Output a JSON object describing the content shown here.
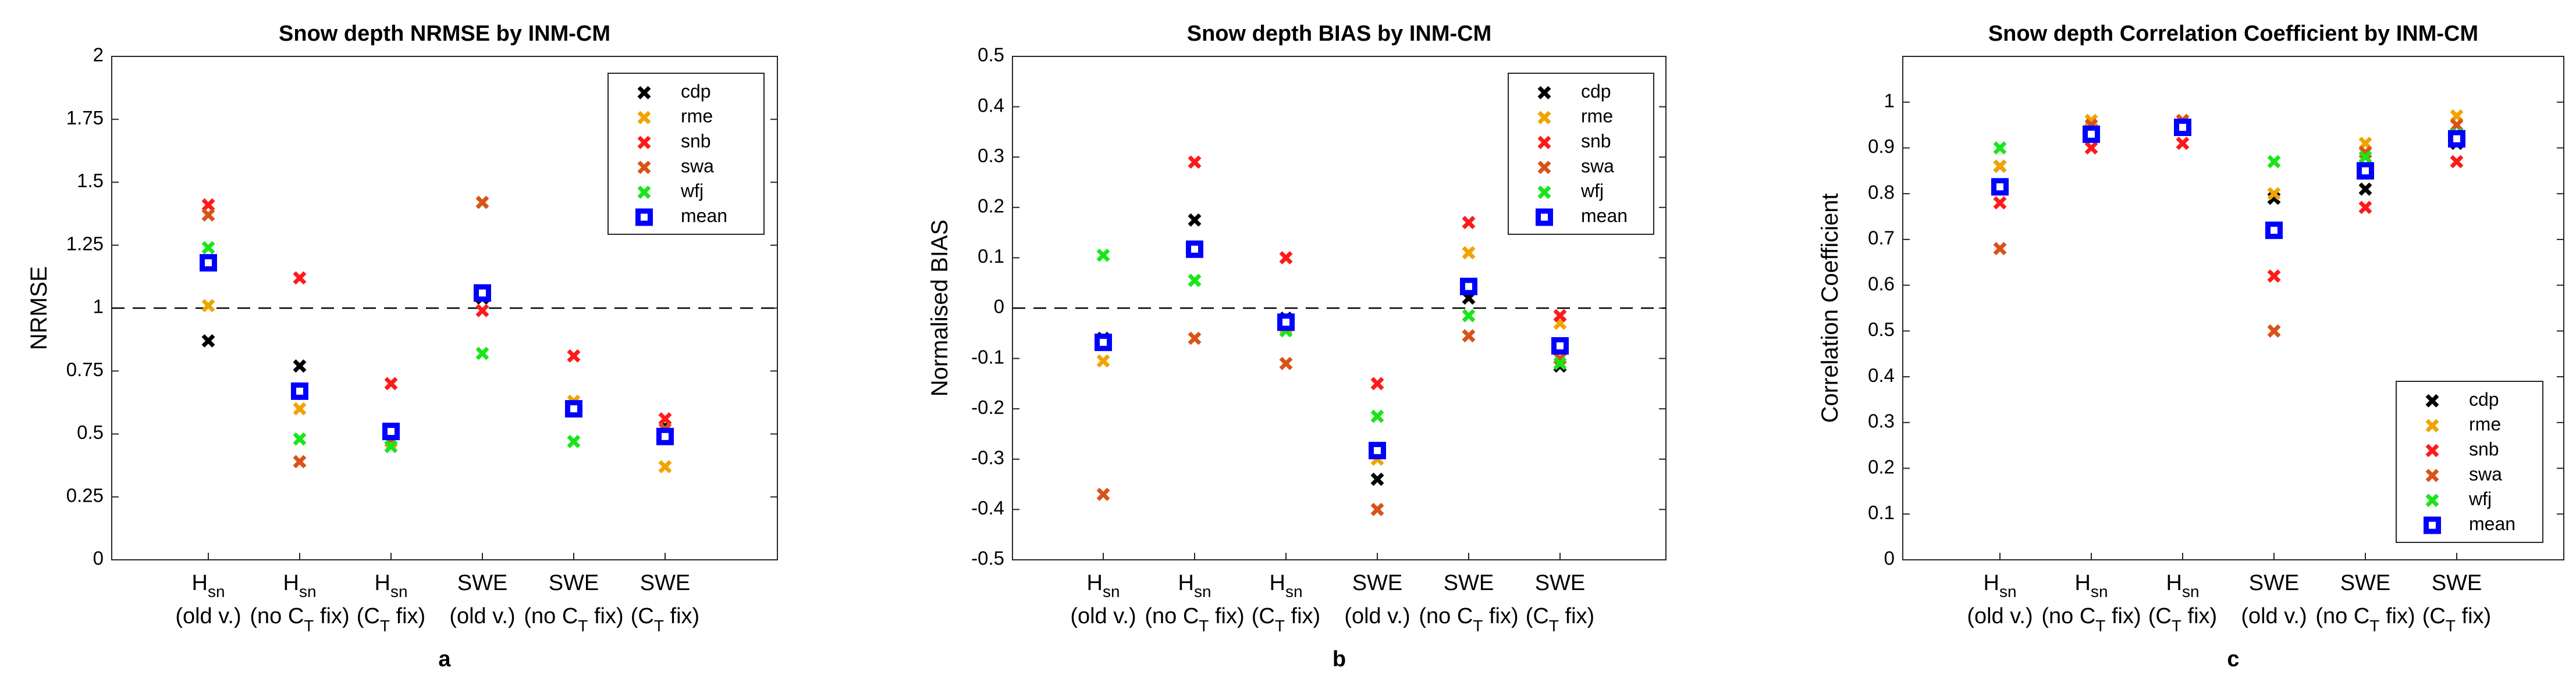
{
  "chart_data": [
    {
      "type": "scatter",
      "panel_label": "a",
      "title": "Snow depth NRMSE by INM-CM",
      "ylabel": "NRMSE",
      "ylim": [
        0,
        2
      ],
      "yticks": [
        "0",
        "0.25",
        "0.5",
        "0.75",
        "1",
        "1.25",
        "1.5",
        "1.75",
        "2"
      ],
      "ytick_values": [
        0,
        0.25,
        0.5,
        0.75,
        1,
        1.25,
        1.5,
        1.75,
        2
      ],
      "reference_line": 1,
      "legend_position": "top-right",
      "categories": [
        {
          "main": "H",
          "sub": "sn",
          "paren": "(old v.)"
        },
        {
          "main": "H",
          "sub": "sn",
          "paren": "(no C",
          "paren_sub": "T",
          "paren_end": " fix)"
        },
        {
          "main": "H",
          "sub": "sn",
          "paren": "(C",
          "paren_sub": "T",
          "paren_end": " fix)"
        },
        {
          "main": "SWE",
          "sub": "",
          "paren": "(old v.)"
        },
        {
          "main": "SWE",
          "sub": "",
          "paren": "(no C",
          "paren_sub": "T",
          "paren_end": " fix)"
        },
        {
          "main": "SWE",
          "sub": "",
          "paren": "(C",
          "paren_sub": "T",
          "paren_end": " fix)"
        }
      ],
      "series": [
        {
          "name": "cdp",
          "color": "#000000",
          "values": [
            0.87,
            0.77,
            0.47,
            1.04,
            0.6,
            0.53
          ]
        },
        {
          "name": "rme",
          "color": "#f0a400",
          "values": [
            1.01,
            0.6,
            0.47,
            1.05,
            0.63,
            0.37
          ]
        },
        {
          "name": "snb",
          "color": "#ff1a1a",
          "values": [
            1.41,
            1.12,
            0.7,
            0.99,
            0.81,
            0.56
          ]
        },
        {
          "name": "swa",
          "color": "#d95319",
          "values": [
            1.37,
            0.39,
            0.48,
            1.42,
            0.61,
            0.52
          ]
        },
        {
          "name": "wfj",
          "color": "#19e619",
          "values": [
            1.24,
            0.48,
            0.45,
            0.82,
            0.47,
            0.49
          ]
        },
        {
          "name": "mean",
          "color": "#0000ff",
          "values": [
            1.18,
            0.67,
            0.51,
            1.06,
            0.6,
            0.49
          ]
        }
      ]
    },
    {
      "type": "scatter",
      "panel_label": "b",
      "title": "Snow depth BIAS by INM-CM",
      "ylabel": "Normalised BIAS",
      "ylim": [
        -0.5,
        0.5
      ],
      "yticks": [
        "-0.5",
        "-0.4",
        "-0.3",
        "-0.2",
        "-0.1",
        "0",
        "0.1",
        "0.2",
        "0.3",
        "0.4",
        "0.5"
      ],
      "ytick_values": [
        -0.5,
        -0.4,
        -0.3,
        -0.2,
        -0.1,
        0,
        0.1,
        0.2,
        0.3,
        0.4,
        0.5
      ],
      "reference_line": 0,
      "legend_position": "top-right",
      "categories": [
        {
          "main": "H",
          "sub": "sn",
          "paren": "(old v.)"
        },
        {
          "main": "H",
          "sub": "sn",
          "paren": "(no C",
          "paren_sub": "T",
          "paren_end": " fix)"
        },
        {
          "main": "H",
          "sub": "sn",
          "paren": "(C",
          "paren_sub": "T",
          "paren_end": " fix)"
        },
        {
          "main": "SWE",
          "sub": "",
          "paren": "(old v.)"
        },
        {
          "main": "SWE",
          "sub": "",
          "paren": "(no C",
          "paren_sub": "T",
          "paren_end": " fix)"
        },
        {
          "main": "SWE",
          "sub": "",
          "paren": "(C",
          "paren_sub": "T",
          "paren_end": " fix)"
        }
      ],
      "series": [
        {
          "name": "cdp",
          "color": "#000000",
          "values": [
            -0.06,
            0.175,
            -0.02,
            -0.34,
            0.02,
            -0.115
          ]
        },
        {
          "name": "rme",
          "color": "#f0a400",
          "values": [
            -0.105,
            0.12,
            -0.04,
            -0.3,
            0.11,
            -0.03
          ]
        },
        {
          "name": "snb",
          "color": "#ff1a1a",
          "values": [
            -0.07,
            0.29,
            0.1,
            -0.15,
            0.17,
            -0.015
          ]
        },
        {
          "name": "swa",
          "color": "#d95319",
          "values": [
            -0.37,
            -0.06,
            -0.11,
            -0.4,
            -0.055,
            -0.1
          ]
        },
        {
          "name": "wfj",
          "color": "#19e619",
          "values": [
            0.105,
            0.055,
            -0.045,
            -0.215,
            -0.015,
            -0.11
          ]
        },
        {
          "name": "mean",
          "color": "#0000ff",
          "values": [
            -0.068,
            0.117,
            -0.028,
            -0.283,
            0.043,
            -0.075
          ]
        }
      ]
    },
    {
      "type": "scatter",
      "panel_label": "c",
      "title": "Snow depth Correlation Coefficient by INM-CM",
      "ylabel": "Correlation Coefficient",
      "ylim": [
        0,
        1.1
      ],
      "yticks": [
        "0",
        "0.1",
        "0.2",
        "0.3",
        "0.4",
        "0.5",
        "0.6",
        "0.7",
        "0.8",
        "0.9",
        "1"
      ],
      "ytick_values": [
        0,
        0.1,
        0.2,
        0.3,
        0.4,
        0.5,
        0.6,
        0.7,
        0.8,
        0.9,
        1
      ],
      "reference_line": null,
      "legend_position": "bottom-right",
      "categories": [
        {
          "main": "H",
          "sub": "sn",
          "paren": "(old v.)"
        },
        {
          "main": "H",
          "sub": "sn",
          "paren": "(no C",
          "paren_sub": "T",
          "paren_end": " fix)"
        },
        {
          "main": "H",
          "sub": "sn",
          "paren": "(C",
          "paren_sub": "T",
          "paren_end": " fix)"
        },
        {
          "main": "SWE",
          "sub": "",
          "paren": "(old v.)"
        },
        {
          "main": "SWE",
          "sub": "",
          "paren": "(no C",
          "paren_sub": "T",
          "paren_end": " fix)"
        },
        {
          "main": "SWE",
          "sub": "",
          "paren": "(C",
          "paren_sub": "T",
          "paren_end": " fix)"
        }
      ],
      "series": [
        {
          "name": "cdp",
          "color": "#000000",
          "values": [
            0.86,
            0.94,
            0.95,
            0.79,
            0.81,
            0.91
          ]
        },
        {
          "name": "rme",
          "color": "#f0a400",
          "values": [
            0.86,
            0.96,
            0.96,
            0.8,
            0.91,
            0.97
          ]
        },
        {
          "name": "snb",
          "color": "#ff1a1a",
          "values": [
            0.78,
            0.9,
            0.91,
            0.62,
            0.77,
            0.87
          ]
        },
        {
          "name": "swa",
          "color": "#d95319",
          "values": [
            0.68,
            0.95,
            0.96,
            0.5,
            0.89,
            0.95
          ]
        },
        {
          "name": "wfj",
          "color": "#19e619",
          "values": [
            0.9,
            0.93,
            0.94,
            0.87,
            0.88,
            0.93
          ]
        },
        {
          "name": "mean",
          "color": "#0000ff",
          "values": [
            0.815,
            0.93,
            0.945,
            0.72,
            0.85,
            0.92
          ]
        }
      ]
    }
  ]
}
